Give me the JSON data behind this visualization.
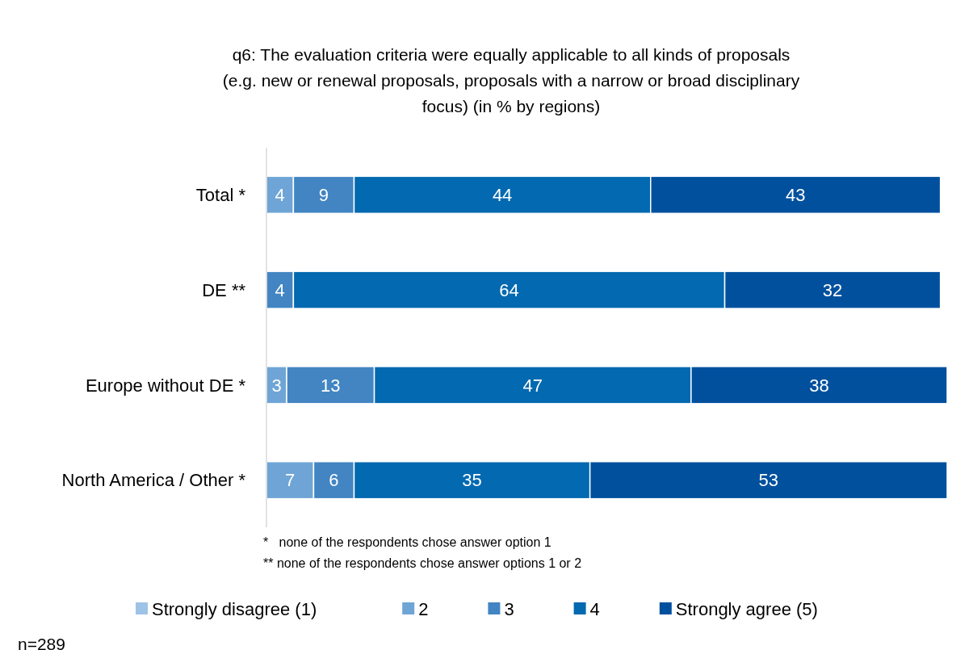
{
  "chart_data": {
    "type": "bar",
    "orientation": "horizontal",
    "stacked": true,
    "data_labels": true,
    "legend": "bottom",
    "title": "q6: The evaluation criteria were equally applicable to all kinds of proposals (e.g. new or renewal proposals, proposals with a narrow or broad disciplinary focus) (in % by regions)",
    "categories": [
      "Total *",
      "DE **",
      "Europe without DE *",
      "North America / Other *"
    ],
    "series": [
      {
        "name": "Strongly disagree (1)",
        "color": "#9dc3e6",
        "values": [
          null,
          null,
          null,
          null
        ]
      },
      {
        "name": "2",
        "color": "#6fa5d6",
        "values": [
          4,
          null,
          3,
          7
        ]
      },
      {
        "name": "3",
        "color": "#4285c2",
        "values": [
          9,
          4,
          13,
          6
        ]
      },
      {
        "name": "4",
        "color": "#0369b0",
        "values": [
          44,
          64,
          47,
          35
        ]
      },
      {
        "name": "Strongly agree (5)",
        "color": "#00509e",
        "values": [
          43,
          32,
          38,
          53
        ]
      }
    ],
    "annotations": [
      "*   none of the respondents chose answer option 1",
      "** none of the respondents chose answer options 1 or 2",
      "n=289"
    ]
  }
}
